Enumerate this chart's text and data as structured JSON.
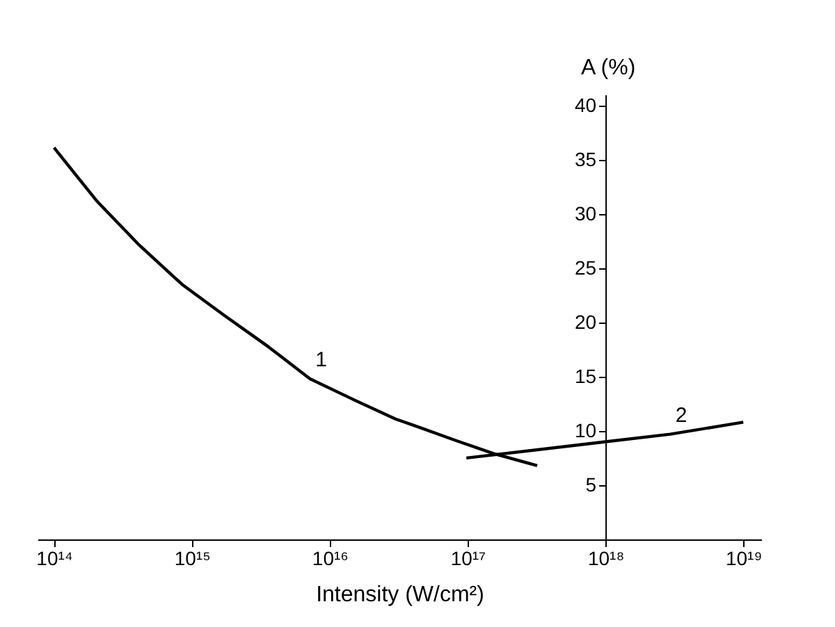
{
  "chart_data": {
    "type": "line",
    "xlabel": "Intensity (W/cm²)",
    "ylabel": "A (%)",
    "log": "x",
    "grid": false,
    "marker": "none",
    "line_style": "solid",
    "xlim": [
      76000000000000.0,
      1.35e+19
    ],
    "xticks": [
      {
        "value": 100000000000000.0,
        "label": "10¹⁴"
      },
      {
        "value": 1000000000000000.0,
        "label": "10¹⁵"
      },
      {
        "value": 1e+16,
        "label": "10¹⁶"
      },
      {
        "value": 1e+17,
        "label": "10¹⁷"
      },
      {
        "value": 1e+18,
        "label": "10¹⁸"
      },
      {
        "value": 1e+19,
        "label": "10¹⁹"
      }
    ],
    "ylim": [
      0,
      41
    ],
    "yticks": [
      5,
      10,
      15,
      20,
      25,
      30,
      35,
      40
    ],
    "series": [
      {
        "name": "1",
        "color": "#000000",
        "x": [
          100000000000000.0,
          204000000000000.0,
          417000000000000.0,
          850000000000000.0,
          1740000000000000.0,
          3550000000000000.0,
          7200000000000000.0,
          1.48e+16,
          3e+16,
          4.1e+16,
          8.3e+16,
          1.55e+17,
          3.2e+17
        ],
        "values": [
          36.1,
          31.2,
          27.1,
          23.5,
          20.6,
          17.8,
          14.8,
          12.9,
          11.1,
          10.5,
          9.1,
          7.9,
          6.8
        ]
      },
      {
        "name": "2",
        "color": "#000000",
        "x": [
          9.8e+16,
          1e+18,
          2.95e+18,
          1e+19
        ],
        "values": [
          7.5,
          9.0,
          9.7,
          10.8
        ]
      }
    ]
  }
}
